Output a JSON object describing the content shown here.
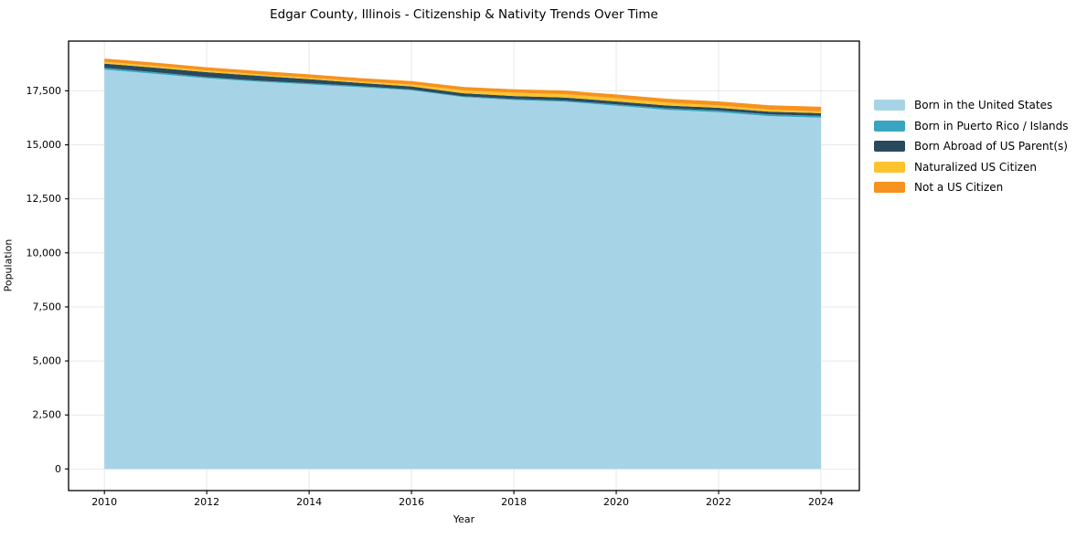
{
  "title": "Edgar County, Illinois - Citizenship & Nativity Trends Over Time",
  "chart_data": {
    "type": "area",
    "stacked": true,
    "title": "Edgar County, Illinois - Citizenship & Nativity Trends Over Time",
    "xlabel": "Year",
    "ylabel": "Population",
    "x": [
      2010,
      2011,
      2012,
      2013,
      2014,
      2015,
      2016,
      2017,
      2018,
      2019,
      2020,
      2021,
      2022,
      2023,
      2024
    ],
    "series": [
      {
        "name": "Born in the United States",
        "color": "#a6d4e6",
        "values": [
          18480,
          18282,
          18075,
          17925,
          17798,
          17665,
          17522,
          17210,
          17075,
          16995,
          16810,
          16615,
          16510,
          16327,
          16253
        ]
      },
      {
        "name": "Born in Puerto Rico / Islands",
        "color": "#39a5c0",
        "values": [
          85,
          75,
          60,
          45,
          50,
          55,
          40,
          40,
          45,
          50,
          60,
          70,
          75,
          80,
          85
        ]
      },
      {
        "name": "Born Abroad of US Parent(s)",
        "color": "#294a5d",
        "values": [
          195,
          210,
          225,
          230,
          190,
          145,
          140,
          140,
          140,
          145,
          140,
          135,
          130,
          128,
          127
        ]
      },
      {
        "name": "Naturalized US Citizen",
        "color": "#fcc32d",
        "values": [
          85,
          85,
          80,
          70,
          70,
          70,
          90,
          130,
          150,
          155,
          150,
          130,
          110,
          95,
          85
        ]
      },
      {
        "name": "Not a US Citizen",
        "color": "#f6921e",
        "values": [
          145,
          148,
          150,
          150,
          152,
          155,
          158,
          160,
          160,
          165,
          170,
          180,
          185,
          200,
          210
        ]
      }
    ],
    "xlim": [
      2009.3,
      2024.75
    ],
    "ylim": [
      -1000,
      19800
    ],
    "xticks": [
      2010,
      2012,
      2014,
      2016,
      2018,
      2020,
      2022,
      2024
    ],
    "xticklabels": [
      "2010",
      "2012",
      "2014",
      "2016",
      "2018",
      "2020",
      "2022",
      "2024"
    ],
    "yticks": [
      0,
      2500,
      5000,
      7500,
      10000,
      12500,
      15000,
      17500
    ],
    "yticklabels": [
      "0",
      "2,500",
      "5,000",
      "7,500",
      "10,000",
      "12,500",
      "15,000",
      "17,500"
    ],
    "grid": true,
    "grid_color": "#e8e8e8",
    "spine_color": "#000000",
    "background": "#ffffff",
    "legend_position": "right"
  },
  "legend": {
    "entries": [
      {
        "label": "Born in the United States",
        "color": "#a6d4e6"
      },
      {
        "label": "Born in Puerto Rico / Islands",
        "color": "#39a5c0"
      },
      {
        "label": "Born Abroad of US Parent(s)",
        "color": "#294a5d"
      },
      {
        "label": "Naturalized US Citizen",
        "color": "#fcc32d"
      },
      {
        "label": "Not a US Citizen",
        "color": "#f6921e"
      }
    ]
  }
}
